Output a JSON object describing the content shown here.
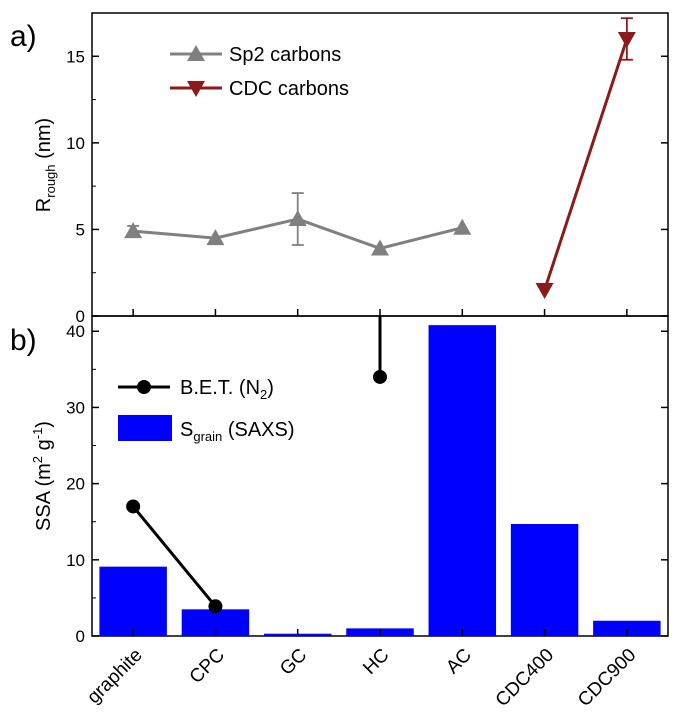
{
  "chart_data": [
    {
      "panel_label": "a)",
      "type": "line",
      "ylabel_main": "R",
      "ylabel_sub": "rough",
      "ylabel_unit": " (nm)",
      "ylim": [
        0,
        17.5
      ],
      "yticks": [
        "0",
        "5",
        "10",
        "15"
      ],
      "ytick_values": [
        0,
        5,
        10,
        15
      ],
      "categories": [
        "graphite",
        "CPC",
        "GC",
        "HC",
        "AC",
        "CDC400",
        "CDC900"
      ],
      "legend_position": "top-left",
      "series": [
        {
          "name": "Sp2 carbons",
          "marker": "triangle-up",
          "color": "#808080",
          "points": [
            {
              "category": "graphite",
              "y": 4.9,
              "err": 0.3
            },
            {
              "category": "CPC",
              "y": 4.5,
              "err": 0
            },
            {
              "category": "GC",
              "y": 5.6,
              "err": 1.5
            },
            {
              "category": "HC",
              "y": 3.9,
              "err": 0
            },
            {
              "category": "AC",
              "y": 5.1,
              "err": 0
            }
          ]
        },
        {
          "name": "CDC carbons",
          "marker": "triangle-down",
          "color": "#8b1a1a",
          "points": [
            {
              "category": "CDC400",
              "y": 1.5,
              "err": 0
            },
            {
              "category": "CDC900",
              "y": 16.0,
              "err": 1.2
            }
          ]
        }
      ]
    },
    {
      "panel_label": "b)",
      "type": "bar",
      "ylabel_main": "SSA (m",
      "ylabel_sup1": "2",
      "ylabel_mid": " g",
      "ylabel_sup2": "-1",
      "ylabel_end": ")",
      "ylim": [
        0,
        42
      ],
      "yticks": [
        "0",
        "10",
        "20",
        "30",
        "40"
      ],
      "ytick_values": [
        0,
        10,
        20,
        30,
        40
      ],
      "categories": [
        "graphite",
        "CPC",
        "GC",
        "HC",
        "AC",
        "CDC400",
        "CDC900"
      ],
      "legend_position": "top-left",
      "bar_series": {
        "name_main": "S",
        "name_sub": "grain",
        "name_rest": " (SAXS)",
        "color": "#0000ff",
        "values": [
          9.1,
          3.5,
          0.3,
          1.0,
          40.8,
          14.7,
          2.0
        ]
      },
      "line_series": {
        "name_main": "B.E.T. (N",
        "name_sub": "2",
        "name_end": ")",
        "color": "#000000",
        "marker": "circle",
        "points": [
          {
            "category": "graphite",
            "y": 17.0
          },
          {
            "category": "CPC",
            "y": 3.9
          },
          {
            "category": "HC",
            "y": 34.0,
            "continues_above_axis": true
          }
        ]
      }
    }
  ]
}
